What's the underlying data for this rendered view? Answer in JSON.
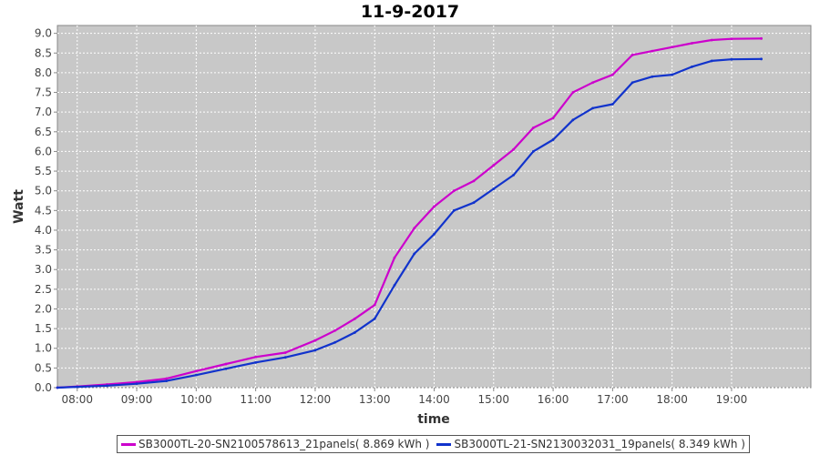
{
  "chart_data": {
    "type": "line",
    "title": "11-9-2017",
    "xlabel": "time",
    "ylabel": "Watt",
    "xlim": [
      "07:40",
      "20:20"
    ],
    "ylim": [
      0,
      9.2
    ],
    "x_ticks": [
      "08:00",
      "09:00",
      "10:00",
      "11:00",
      "12:00",
      "13:00",
      "14:00",
      "15:00",
      "16:00",
      "17:00",
      "18:00",
      "19:00"
    ],
    "y_ticks": [
      "0.0",
      "0.5",
      "1.0",
      "1.5",
      "2.0",
      "2.5",
      "3.0",
      "3.5",
      "4.0",
      "4.5",
      "5.0",
      "5.5",
      "6.0",
      "6.5",
      "7.0",
      "7.5",
      "8.0",
      "8.5",
      "9.0"
    ],
    "grid": true,
    "legend_position": "bottom",
    "series": [
      {
        "name": "SB3000TL-20-SN2100578613_21panels( 8.869 kWh )",
        "color": "#cc00cc",
        "x": [
          "07:40",
          "08:00",
          "08:30",
          "09:00",
          "09:30",
          "10:00",
          "10:30",
          "11:00",
          "11:30",
          "12:00",
          "12:20",
          "12:40",
          "13:00",
          "13:20",
          "13:40",
          "14:00",
          "14:20",
          "14:40",
          "15:00",
          "15:20",
          "15:40",
          "16:00",
          "16:20",
          "16:40",
          "17:00",
          "17:20",
          "17:40",
          "18:00",
          "18:20",
          "18:40",
          "19:00",
          "19:30"
        ],
        "values": [
          0.0,
          0.03,
          0.08,
          0.14,
          0.23,
          0.42,
          0.6,
          0.78,
          0.89,
          1.2,
          1.45,
          1.75,
          2.1,
          3.3,
          4.05,
          4.6,
          5.0,
          5.25,
          5.65,
          6.05,
          6.6,
          6.85,
          7.5,
          7.75,
          7.95,
          8.45,
          8.55,
          8.65,
          8.75,
          8.83,
          8.86,
          8.869
        ]
      },
      {
        "name": "SB3000TL-21-SN2130032031_19panels( 8.349 kWh )",
        "color": "#1133cc",
        "x": [
          "07:40",
          "08:00",
          "08:30",
          "09:00",
          "09:30",
          "10:00",
          "10:30",
          "11:00",
          "11:30",
          "12:00",
          "12:20",
          "12:40",
          "13:00",
          "13:20",
          "13:40",
          "14:00",
          "14:20",
          "14:40",
          "15:00",
          "15:20",
          "15:40",
          "16:00",
          "16:20",
          "16:40",
          "17:00",
          "17:20",
          "17:40",
          "18:00",
          "18:20",
          "18:40",
          "19:00",
          "19:30"
        ],
        "values": [
          0.0,
          0.02,
          0.05,
          0.1,
          0.17,
          0.32,
          0.48,
          0.64,
          0.77,
          0.95,
          1.15,
          1.4,
          1.75,
          2.6,
          3.4,
          3.9,
          4.5,
          4.7,
          5.05,
          5.4,
          6.0,
          6.3,
          6.8,
          7.1,
          7.2,
          7.75,
          7.9,
          7.95,
          8.15,
          8.3,
          8.34,
          8.349
        ]
      }
    ]
  }
}
